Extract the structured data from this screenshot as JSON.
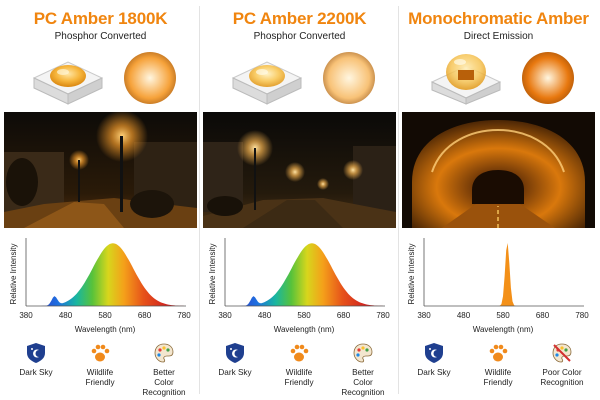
{
  "columns": [
    {
      "title": "PC Amber 1800K",
      "subtitle": "Phosphor Converted",
      "glow_color": "#f6a23a",
      "spectrum": "broad",
      "features": [
        {
          "icon": "dark-sky-icon",
          "label": "Dark Sky"
        },
        {
          "icon": "paw-icon",
          "label": "Wildlife\nFriendly"
        },
        {
          "icon": "palette-icon",
          "label": "Better\nColor\nRecognition"
        }
      ]
    },
    {
      "title": "PC Amber 2200K",
      "subtitle": "Phosphor Converted",
      "glow_color": "#f8c277",
      "spectrum": "broad",
      "features": [
        {
          "icon": "dark-sky-icon",
          "label": "Dark Sky"
        },
        {
          "icon": "paw-icon",
          "label": "Wildlife\nFriendly"
        },
        {
          "icon": "palette-icon",
          "label": "Better\nColor\nRecognition"
        }
      ]
    },
    {
      "title": "Monochromatic Amber",
      "subtitle": "Direct Emission",
      "glow_color": "#e8780f",
      "spectrum": "narrow",
      "features": [
        {
          "icon": "dark-sky-icon",
          "label": "Dark Sky"
        },
        {
          "icon": "paw-icon",
          "label": "Wildlife\nFriendly"
        },
        {
          "icon": "palette-crossed-icon",
          "label": "Poor Color\nRecognition"
        }
      ]
    }
  ],
  "axis": {
    "ylabel": "Relative Intensity",
    "xlabel": "Wavelength (nm)",
    "ticks": [
      "380",
      "480",
      "580",
      "680",
      "780"
    ]
  },
  "colors": {
    "title": "#f0850f",
    "dark_sky": "#1f3f8f",
    "paw": "#f08a1c"
  }
}
